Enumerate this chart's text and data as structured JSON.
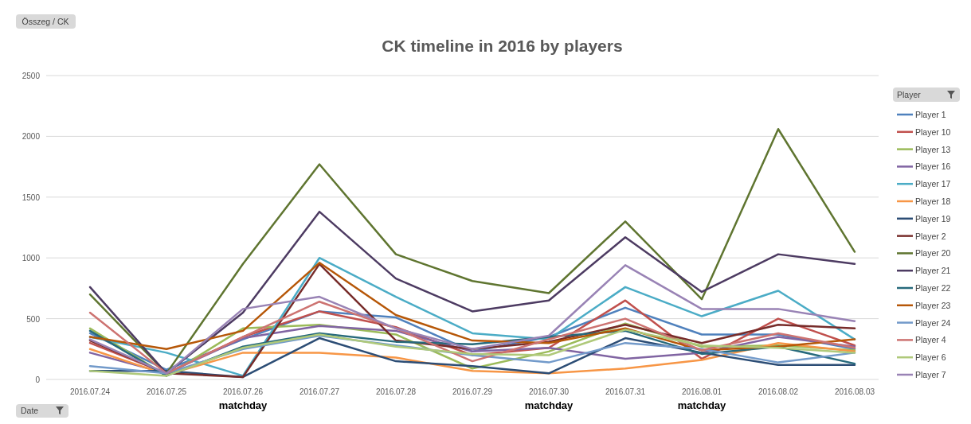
{
  "chart_data": {
    "type": "line",
    "title": "CK timeline in 2016 by players",
    "xlabel": "Date",
    "legend_title": "Player",
    "legend": "right",
    "grid": "y",
    "line_style": "solid",
    "marker": "none",
    "categories": [
      "2016.07.24",
      "2016.07.25",
      "2016.07.26",
      "2016.07.27",
      "2016.07.28",
      "2016.07.29",
      "2016.07.30",
      "2016.07.31",
      "2016.08.01",
      "2016.08.02",
      "2016.08.03"
    ],
    "ylim": [
      0,
      2500
    ],
    "yticks": [
      0,
      500,
      1000,
      1500,
      2000,
      2500
    ],
    "series": [
      {
        "name": "Player 1",
        "color": "#4f81bd",
        "values": [
          380,
          80,
          330,
          560,
          510,
          230,
          350,
          590,
          370,
          370,
          250
        ]
      },
      {
        "name": "Player 10",
        "color": "#c0504d",
        "values": [
          300,
          50,
          350,
          560,
          430,
          200,
          260,
          650,
          170,
          500,
          280
        ]
      },
      {
        "name": "Player 13",
        "color": "#9bbb59",
        "values": [
          420,
          30,
          420,
          450,
          370,
          90,
          230,
          460,
          270,
          280,
          240
        ]
      },
      {
        "name": "Player 16",
        "color": "#8064a2",
        "values": [
          220,
          50,
          340,
          440,
          400,
          230,
          260,
          170,
          220,
          350,
          270
        ]
      },
      {
        "name": "Player 17",
        "color": "#4bacc6",
        "values": [
          350,
          220,
          30,
          1000,
          680,
          380,
          330,
          760,
          520,
          730,
          330
        ]
      },
      {
        "name": "Player 18",
        "color": "#f79646",
        "values": [
          250,
          40,
          220,
          220,
          180,
          70,
          50,
          90,
          160,
          300,
          230
        ]
      },
      {
        "name": "Player 19",
        "color": "#2c4d75",
        "values": [
          70,
          70,
          20,
          340,
          150,
          110,
          50,
          340,
          220,
          120,
          120
        ]
      },
      {
        "name": "Player 2",
        "color": "#772c2a",
        "values": [
          320,
          50,
          20,
          950,
          320,
          250,
          310,
          450,
          300,
          450,
          420
        ]
      },
      {
        "name": "Player 20",
        "color": "#5f7530",
        "values": [
          700,
          50,
          950,
          1770,
          1030,
          810,
          710,
          1300,
          660,
          2060,
          1050
        ]
      },
      {
        "name": "Player 21",
        "color": "#4d3b62",
        "values": [
          760,
          50,
          550,
          1380,
          830,
          560,
          650,
          1170,
          720,
          1030,
          950
        ]
      },
      {
        "name": "Player 22",
        "color": "#276a7c",
        "values": [
          400,
          30,
          270,
          380,
          310,
          290,
          350,
          400,
          210,
          270,
          130
        ]
      },
      {
        "name": "Player 23",
        "color": "#b65708",
        "values": [
          350,
          250,
          400,
          960,
          530,
          320,
          300,
          420,
          240,
          270,
          330
        ]
      },
      {
        "name": "Player 24",
        "color": "#729aca",
        "values": [
          110,
          50,
          250,
          360,
          280,
          200,
          140,
          300,
          250,
          140,
          220
        ]
      },
      {
        "name": "Player 4",
        "color": "#cd7371",
        "values": [
          550,
          50,
          350,
          640,
          420,
          150,
          330,
          500,
          240,
          380,
          260
        ]
      },
      {
        "name": "Player 6",
        "color": "#afc97a",
        "values": [
          70,
          30,
          260,
          370,
          270,
          210,
          200,
          410,
          280,
          260,
          220
        ]
      },
      {
        "name": "Player 7",
        "color": "#9983b5",
        "values": [
          330,
          50,
          580,
          680,
          420,
          250,
          360,
          940,
          580,
          580,
          480
        ]
      }
    ],
    "annotations": [
      "Összeg / CK",
      "matchday",
      "matchday",
      "matchday"
    ]
  }
}
